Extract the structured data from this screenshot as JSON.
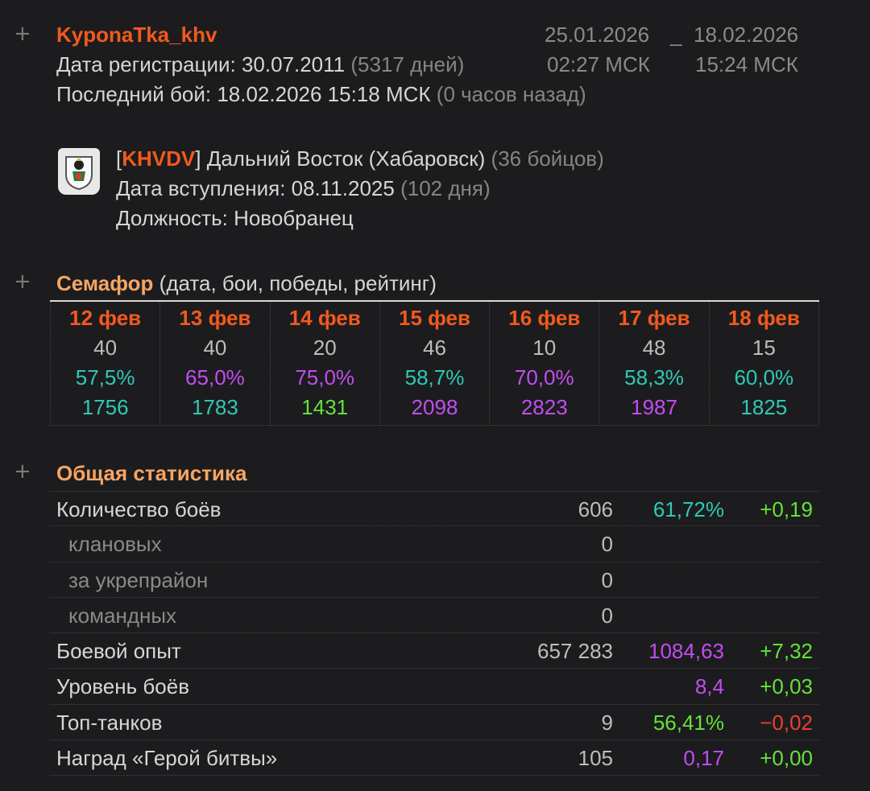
{
  "player": {
    "name": "KyponaTka_khv",
    "reg_label": "Дата регистрации: 30.07.2011",
    "reg_days": "(5317 дней)",
    "last_battle_label": "Последний бой: 18.02.2026 15:18 МСК",
    "last_battle_ago": "(0 часов назад)"
  },
  "period": {
    "from_date": "25.01.2026",
    "from_time": "02:27 МСК",
    "sep": "_",
    "to_date": "18.02.2026",
    "to_time": "15:24 МСК"
  },
  "clan": {
    "bracket_open": "[",
    "tag": "KHVDV",
    "bracket_close": "]",
    "name": "Дальний Восток (Хабаровск)",
    "members": "(36 бойцов)",
    "joined_label": "Дата вступления: 08.11.2025",
    "joined_days": "(102 дня)",
    "role": "Должность: Новобранец"
  },
  "semaphore": {
    "title": "Семафор",
    "subtitle": "(дата, бои, победы, рейтинг)",
    "days": [
      {
        "day": "12 фев",
        "battles": "40",
        "win": "57,5%",
        "win_color": "teal",
        "rating": "1756",
        "rating_color": "teal"
      },
      {
        "day": "13 фев",
        "battles": "40",
        "win": "65,0%",
        "win_color": "purple",
        "rating": "1783",
        "rating_color": "teal"
      },
      {
        "day": "14 фев",
        "battles": "20",
        "win": "75,0%",
        "win_color": "purple",
        "rating": "1431",
        "rating_color": "green"
      },
      {
        "day": "15 фев",
        "battles": "46",
        "win": "58,7%",
        "win_color": "teal",
        "rating": "2098",
        "rating_color": "purple"
      },
      {
        "day": "16 фев",
        "battles": "10",
        "win": "70,0%",
        "win_color": "purple",
        "rating": "2823",
        "rating_color": "purple"
      },
      {
        "day": "17 фев",
        "battles": "48",
        "win": "58,3%",
        "win_color": "teal",
        "rating": "1987",
        "rating_color": "purple"
      },
      {
        "day": "18 фев",
        "battles": "15",
        "win": "60,0%",
        "win_color": "teal",
        "rating": "1825",
        "rating_color": "teal"
      }
    ]
  },
  "stats": {
    "title": "Общая статистика",
    "rows": [
      {
        "label": "Количество боёв",
        "sub": false,
        "v1": "606",
        "v2": "61,72%",
        "v2_color": "teal",
        "v3": "+0,19",
        "v3_color": "green"
      },
      {
        "label": "клановых",
        "sub": true,
        "v1": "0",
        "v2": "",
        "v2_color": "",
        "v3": "",
        "v3_color": ""
      },
      {
        "label": "за укрепрайон",
        "sub": true,
        "v1": "0",
        "v2": "",
        "v2_color": "",
        "v3": "",
        "v3_color": ""
      },
      {
        "label": "командных",
        "sub": true,
        "v1": "0",
        "v2": "",
        "v2_color": "",
        "v3": "",
        "v3_color": ""
      },
      {
        "label": "Боевой опыт",
        "sub": false,
        "v1": "657 283",
        "v2": "1084,63",
        "v2_color": "purple",
        "v3": "+7,32",
        "v3_color": "green"
      },
      {
        "label": "Уровень боёв",
        "sub": false,
        "v1": "",
        "v2": "8,4",
        "v2_color": "purple",
        "v3": "+0,03",
        "v3_color": "green"
      },
      {
        "label": "Топ-танков",
        "sub": false,
        "v1": "9",
        "v2": "56,41%",
        "v2_color": "green",
        "v3": "−0,02",
        "v3_color": "red"
      },
      {
        "label": "Наград «Герой битвы»",
        "sub": false,
        "v1": "105",
        "v2": "0,17",
        "v2_color": "purple",
        "v3": "+0,00",
        "v3_color": "green"
      }
    ]
  },
  "ui": {
    "expand_glyph": "+",
    "emblem_icon": "clan-emblem-icon"
  }
}
